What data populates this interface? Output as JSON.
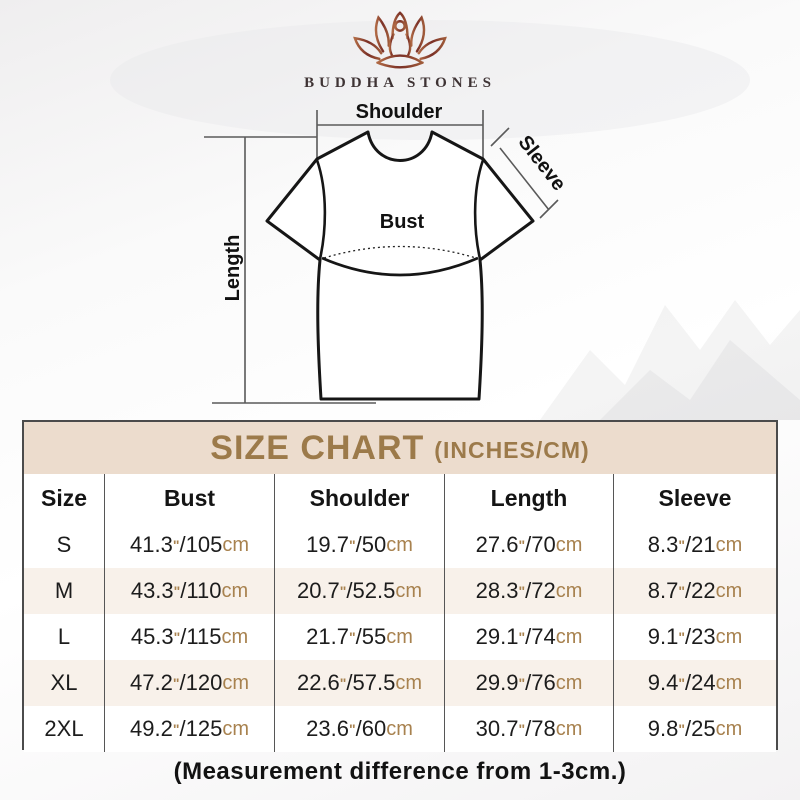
{
  "brand": {
    "name": "BUDDHA STONES"
  },
  "diagram": {
    "shoulder_label": "Shoulder",
    "sleeve_label": "Sleeve",
    "bust_label": "Bust",
    "length_label": "Length"
  },
  "size_chart": {
    "title": "SIZE CHART",
    "title_suffix": "(INCHES/CM)",
    "columns": [
      "Size",
      "Bust",
      "Shoulder",
      "Length",
      "Sleeve"
    ],
    "inch_mark": "\"",
    "cm_unit": "cm",
    "rows": [
      {
        "size": "S",
        "bust": {
          "in": "41.3",
          "cm": "105"
        },
        "shoulder": {
          "in": "19.7",
          "cm": "50"
        },
        "length": {
          "in": "27.6",
          "cm": "70"
        },
        "sleeve": {
          "in": "8.3",
          "cm": "21"
        }
      },
      {
        "size": "M",
        "bust": {
          "in": "43.3",
          "cm": "110"
        },
        "shoulder": {
          "in": "20.7",
          "cm": "52.5"
        },
        "length": {
          "in": "28.3",
          "cm": "72"
        },
        "sleeve": {
          "in": "8.7",
          "cm": "22"
        }
      },
      {
        "size": "L",
        "bust": {
          "in": "45.3",
          "cm": "115"
        },
        "shoulder": {
          "in": "21.7",
          "cm": "55"
        },
        "length": {
          "in": "29.1",
          "cm": "74"
        },
        "sleeve": {
          "in": "9.1",
          "cm": "23"
        }
      },
      {
        "size": "XL",
        "bust": {
          "in": "47.2",
          "cm": "120"
        },
        "shoulder": {
          "in": "22.6",
          "cm": "57.5"
        },
        "length": {
          "in": "29.9",
          "cm": "76"
        },
        "sleeve": {
          "in": "9.4",
          "cm": "24"
        }
      },
      {
        "size": "2XL",
        "bust": {
          "in": "49.2",
          "cm": "125"
        },
        "shoulder": {
          "in": "23.6",
          "cm": "60"
        },
        "length": {
          "in": "30.7",
          "cm": "78"
        },
        "sleeve": {
          "in": "9.8",
          "cm": "25"
        }
      }
    ]
  },
  "footer": {
    "note": "(Measurement difference from 1-3cm.)"
  },
  "colors": {
    "accent_brown": "#a8824f",
    "title_brown": "#9c7a4a",
    "title_band_bg": "#ecdccd",
    "alt_row_bg": "#f8f1ea",
    "table_border": "#4b4b4b",
    "logo_gradient_from": "#a05c3b",
    "logo_gradient_to": "#7a2f26"
  }
}
